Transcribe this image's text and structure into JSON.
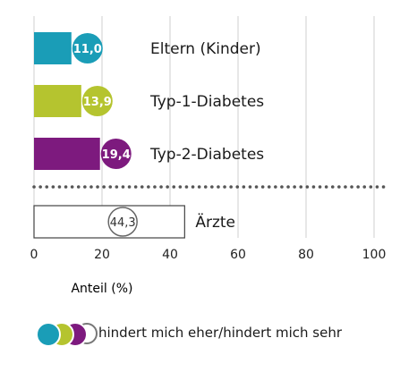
{
  "chart_data": {
    "type": "bar",
    "orientation": "horizontal",
    "xlabel": "Anteil (%)",
    "xlim": [
      0,
      105
    ],
    "xticks": [
      0,
      20,
      40,
      60,
      80,
      100
    ],
    "grid": true,
    "bars": [
      {
        "category": "Eltern (Kinder)",
        "value": 11.0,
        "value_label": "11,0",
        "color": "#1a9db7",
        "style": "filled"
      },
      {
        "category": "Typ-1-Diabetes",
        "value": 13.9,
        "value_label": "13,9",
        "color": "#b5c42f",
        "style": "filled"
      },
      {
        "category": "Typ-2-Diabetes",
        "value": 19.4,
        "value_label": "19,4",
        "color": "#7d1a7e",
        "style": "filled"
      },
      {
        "category": "Ärzte",
        "value": 44.3,
        "value_label": "44,3",
        "color": "#ffffff",
        "style": "outline"
      }
    ],
    "separator": "dotted line between Typ-2-Diabetes and Ärzte"
  },
  "legend": {
    "text": "hindert mich eher/hindert mich sehr",
    "swatches": [
      "#1a9db7",
      "#b5c42f",
      "#7d1a7e",
      "#ffffff"
    ]
  }
}
